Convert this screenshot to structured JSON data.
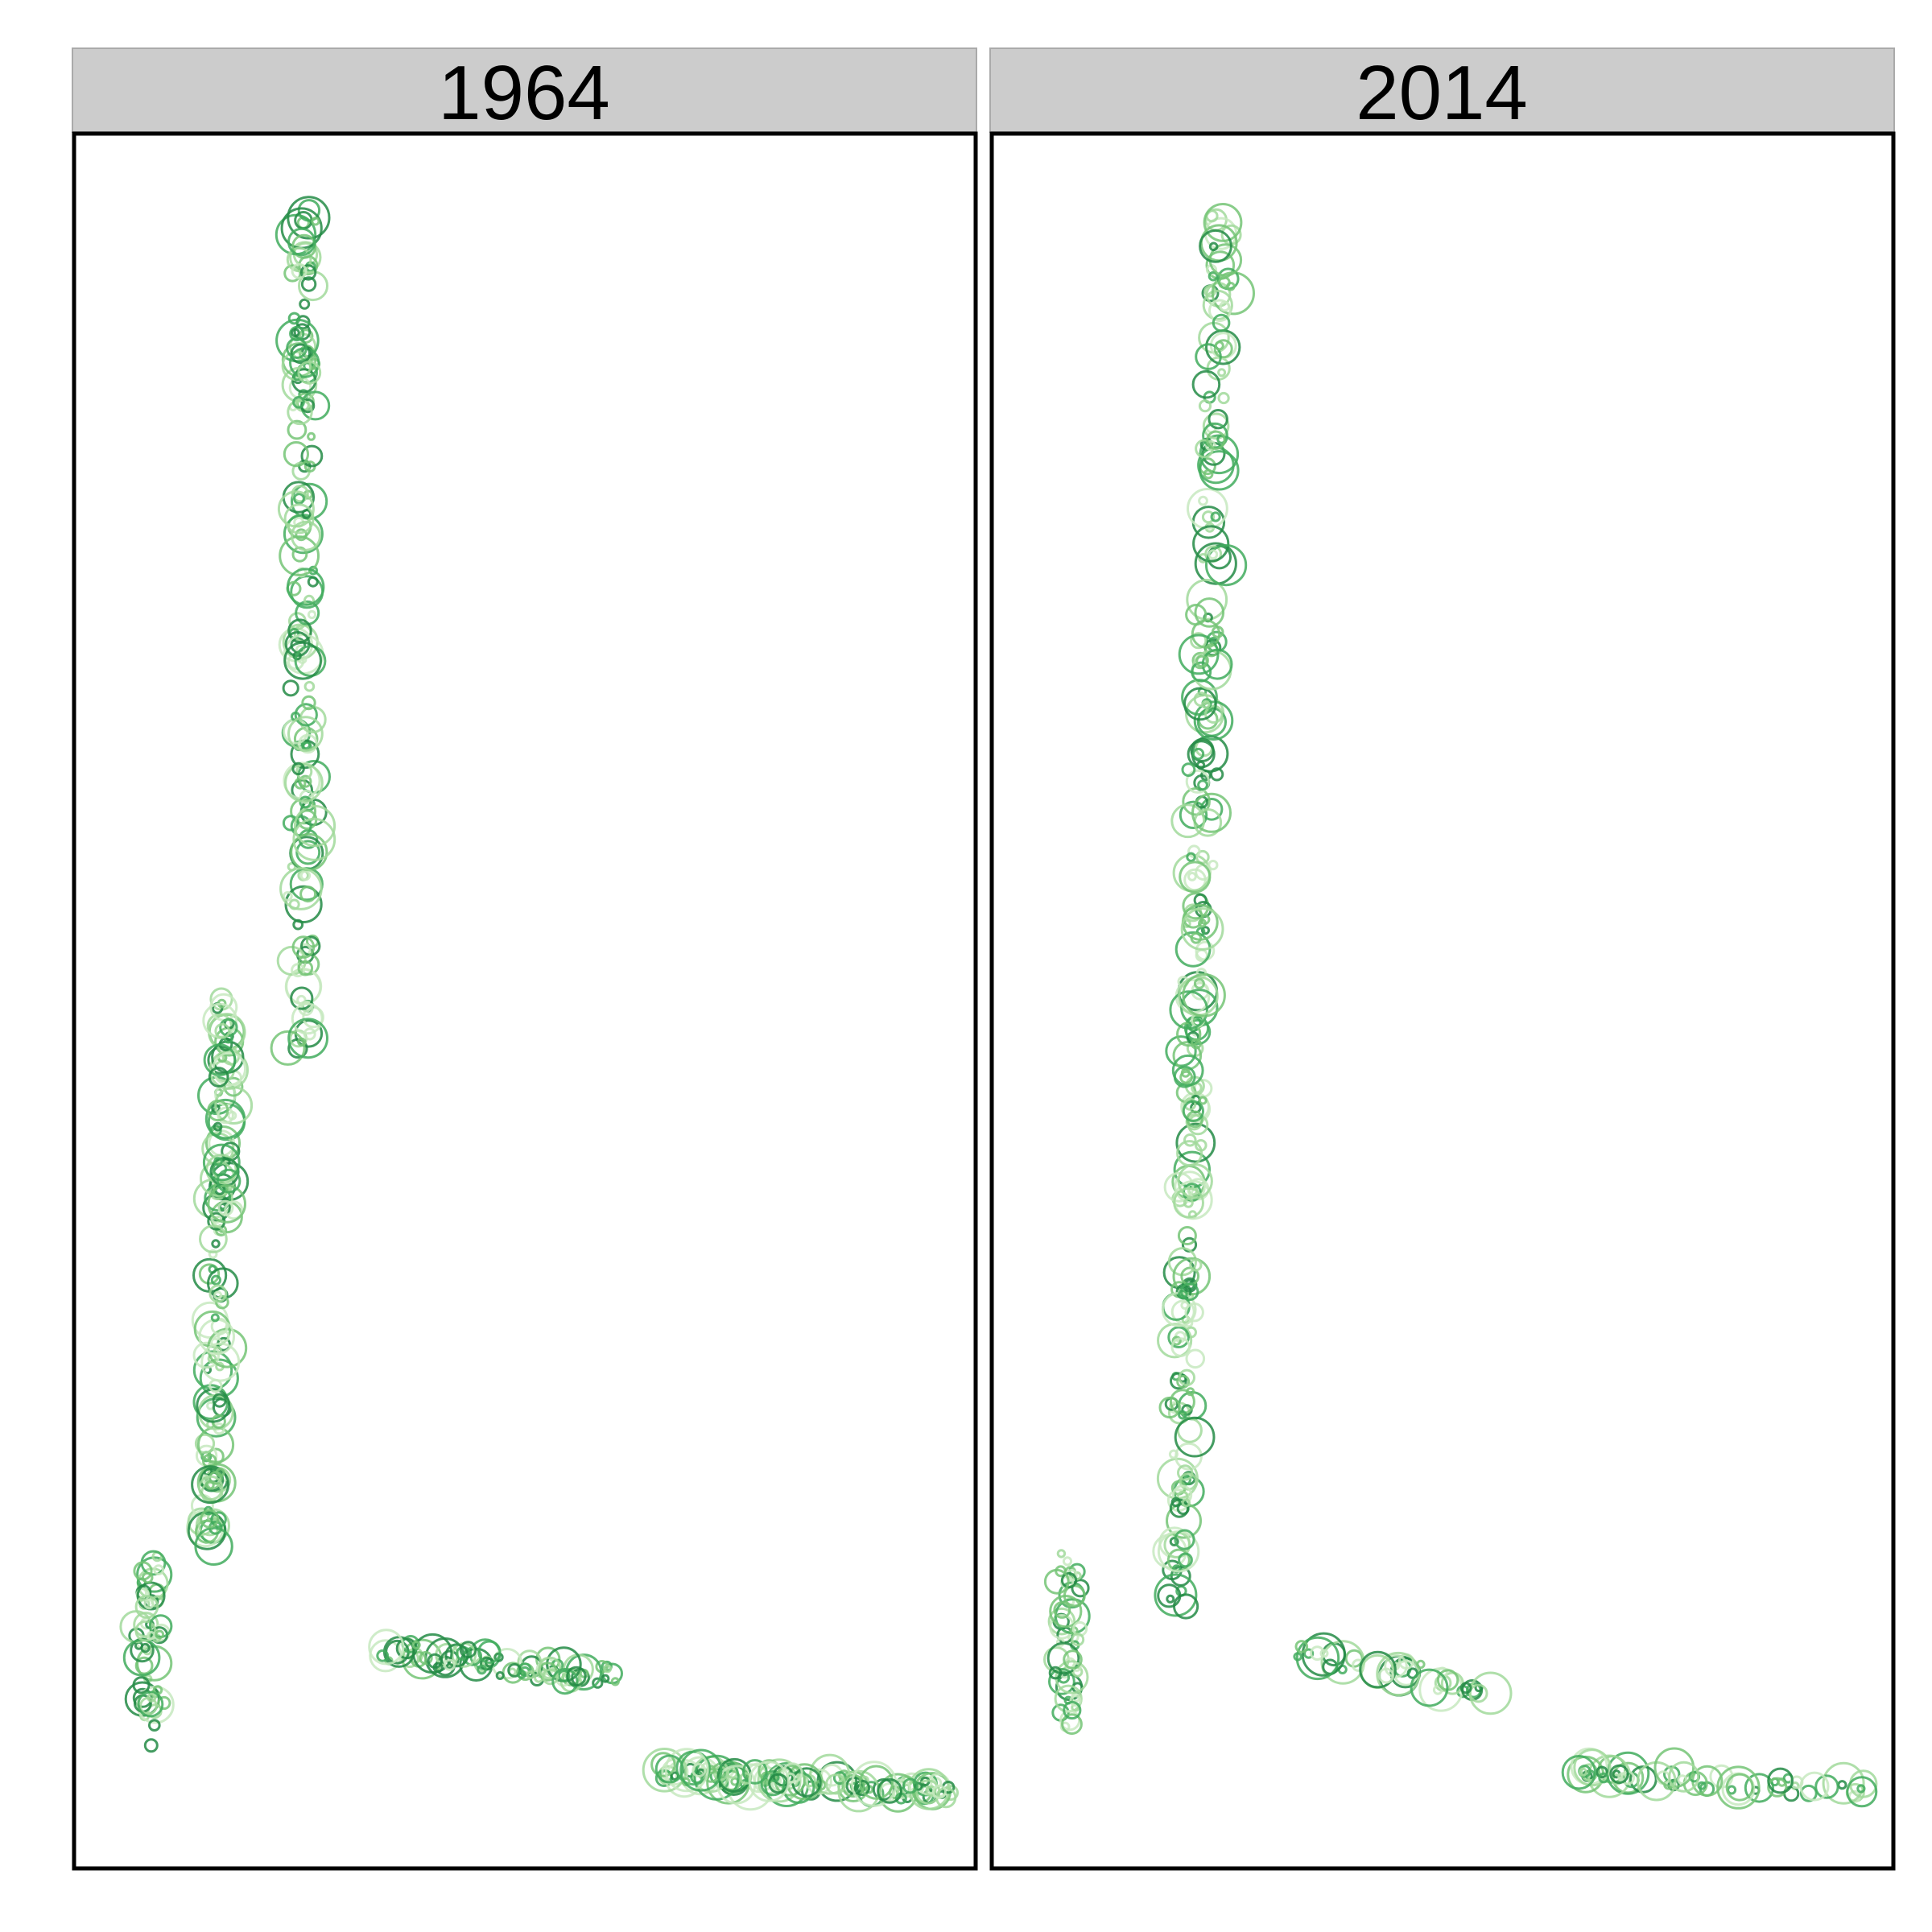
{
  "chart_data": {
    "type": "scatter",
    "facets": [
      {
        "label": "1964",
        "transects": [
          {
            "x0": 0.255,
            "y0": 0.47,
            "x1": 0.255,
            "y1": 0.955,
            "n": 170,
            "r_max": 22,
            "jit": 0.02,
            "shift": 0.0
          },
          {
            "x0": 0.15,
            "y0": 0.185,
            "x1": 0.17,
            "y1": 0.5,
            "n": 150,
            "r_max": 20,
            "jit": 0.018,
            "shift": 0.0
          },
          {
            "x0": 0.085,
            "y0": 0.08,
            "x1": 0.085,
            "y1": 0.18,
            "n": 55,
            "r_max": 19,
            "jit": 0.022,
            "shift": 0.0
          },
          {
            "x0": 0.34,
            "y0": 0.125,
            "x1": 0.6,
            "y1": 0.11,
            "n": 80,
            "r_max": 20,
            "jit": 0.012,
            "shift": 0.0
          },
          {
            "x0": 0.65,
            "y0": 0.055,
            "x1": 0.97,
            "y1": 0.045,
            "n": 120,
            "r_max": 25,
            "jit": 0.01,
            "shift": 0.0
          }
        ]
      },
      {
        "label": "2014",
        "transects": [
          {
            "x0": 0.205,
            "y0": 0.15,
            "x1": 0.255,
            "y1": 0.955,
            "n": 270,
            "r_max": 22,
            "jit": 0.02,
            "shift": 0.01
          },
          {
            "x0": 0.085,
            "y0": 0.08,
            "x1": 0.085,
            "y1": 0.175,
            "n": 50,
            "r_max": 17,
            "jit": 0.022,
            "shift": 0.0
          },
          {
            "x0": 0.34,
            "y0": 0.125,
            "x1": 0.56,
            "y1": 0.1,
            "n": 40,
            "r_max": 23,
            "jit": 0.012,
            "shift": 0.0
          },
          {
            "x0": 0.65,
            "y0": 0.055,
            "x1": 0.97,
            "y1": 0.045,
            "n": 60,
            "r_max": 22,
            "jit": 0.01,
            "shift": 0.0
          }
        ]
      }
    ],
    "xlim": [
      0,
      1
    ],
    "ylim": [
      0,
      1
    ],
    "point_shape": "open circle",
    "size_encoding": true,
    "color_encoding": "green gradient",
    "grid": false,
    "axes_shown": false,
    "legend": "none"
  },
  "colors": {
    "strip_fill": "#cccccc",
    "panel_border": "#000000",
    "greens": [
      "#c7e9c0",
      "#a1d99b",
      "#74c476",
      "#41ab5d",
      "#238b45"
    ]
  }
}
